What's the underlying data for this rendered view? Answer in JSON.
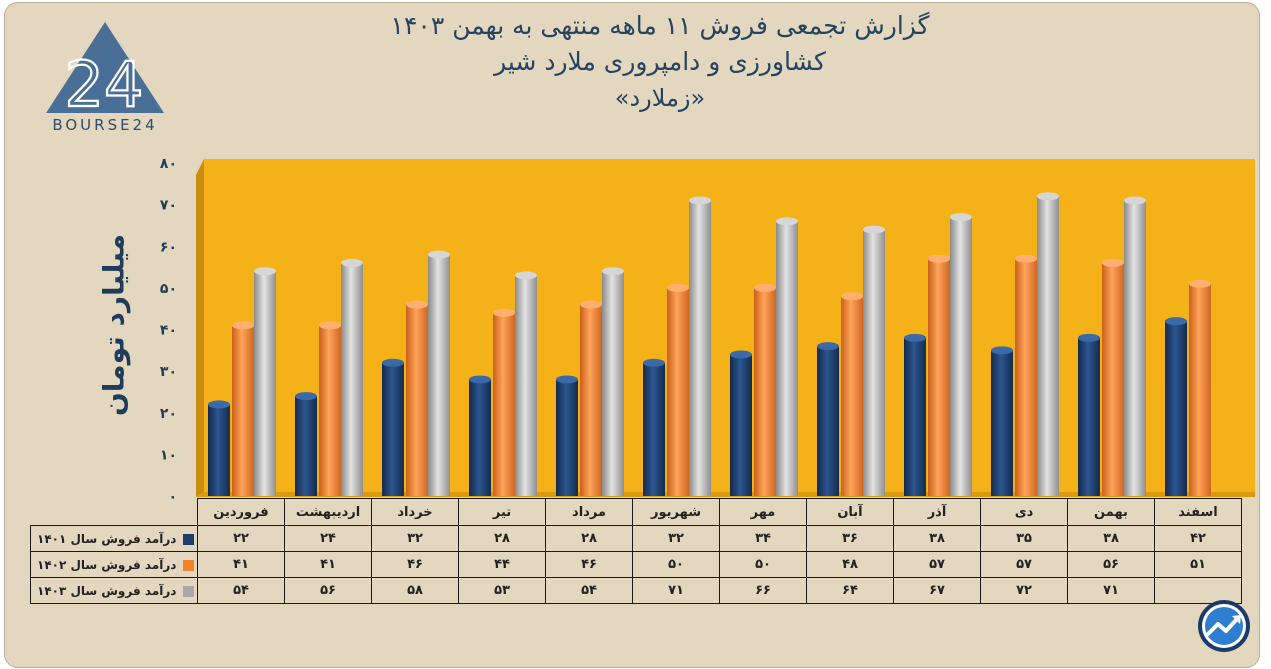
{
  "header": {
    "title_line1": "گزارش تجمعی فروش ۱۱ ماهه منتهی به بهمن ۱۴۰۳",
    "title_line2": "کشاورزی و دامپروری ملارد شیر",
    "title_line3": "«زملارد»"
  },
  "logo": {
    "mark_icon": "bourse24-logo-icon",
    "text": "BOURSE24"
  },
  "badge": {
    "icon": "trend-chart-icon"
  },
  "colors": {
    "plot_bg": "#f5b218",
    "series_1401": "#1d3c6a",
    "series_1402": "#f0842b",
    "series_1403": "#a8a8a8",
    "card_bg": "#e3d8bf",
    "title": "#26435f"
  },
  "chart_data": {
    "type": "bar",
    "ylabel": "میلیارد تومان",
    "ylim": [
      0,
      80
    ],
    "yticks": [
      "۰",
      "۱۰",
      "۲۰",
      "۳۰",
      "۴۰",
      "۵۰",
      "۶۰",
      "۷۰",
      "۸۰"
    ],
    "ytick_values": [
      0,
      10,
      20,
      30,
      40,
      50,
      60,
      70,
      80
    ],
    "grid": false,
    "categories": [
      "فروردین",
      "اردیبهشت",
      "خرداد",
      "تیر",
      "مرداد",
      "شهریور",
      "مهر",
      "آبان",
      "آذر",
      "دی",
      "بهمن",
      "اسفند"
    ],
    "series": [
      {
        "name": "درآمد فروش سال ۱۴۰۱",
        "values": [
          22,
          24,
          32,
          28,
          28,
          32,
          34,
          36,
          38,
          35,
          38,
          42
        ],
        "labels": [
          "۲۲",
          "۲۴",
          "۳۲",
          "۲۸",
          "۲۸",
          "۳۲",
          "۳۴",
          "۳۶",
          "۳۸",
          "۳۵",
          "۳۸",
          "۴۲"
        ]
      },
      {
        "name": "درآمد فروش سال ۱۴۰۲",
        "values": [
          41,
          41,
          46,
          44,
          46,
          50,
          50,
          48,
          57,
          57,
          56,
          51
        ],
        "labels": [
          "۴۱",
          "۴۱",
          "۴۶",
          "۴۴",
          "۴۶",
          "۵۰",
          "۵۰",
          "۴۸",
          "۵۷",
          "۵۷",
          "۵۶",
          "۵۱"
        ]
      },
      {
        "name": "درآمد فروش سال ۱۴۰۳",
        "values": [
          54,
          56,
          58,
          53,
          54,
          71,
          66,
          64,
          67,
          72,
          71,
          null
        ],
        "labels": [
          "۵۴",
          "۵۶",
          "۵۸",
          "۵۳",
          "۵۴",
          "۷۱",
          "۶۶",
          "۶۴",
          "۶۷",
          "۷۲",
          "۷۱",
          ""
        ]
      }
    ]
  }
}
